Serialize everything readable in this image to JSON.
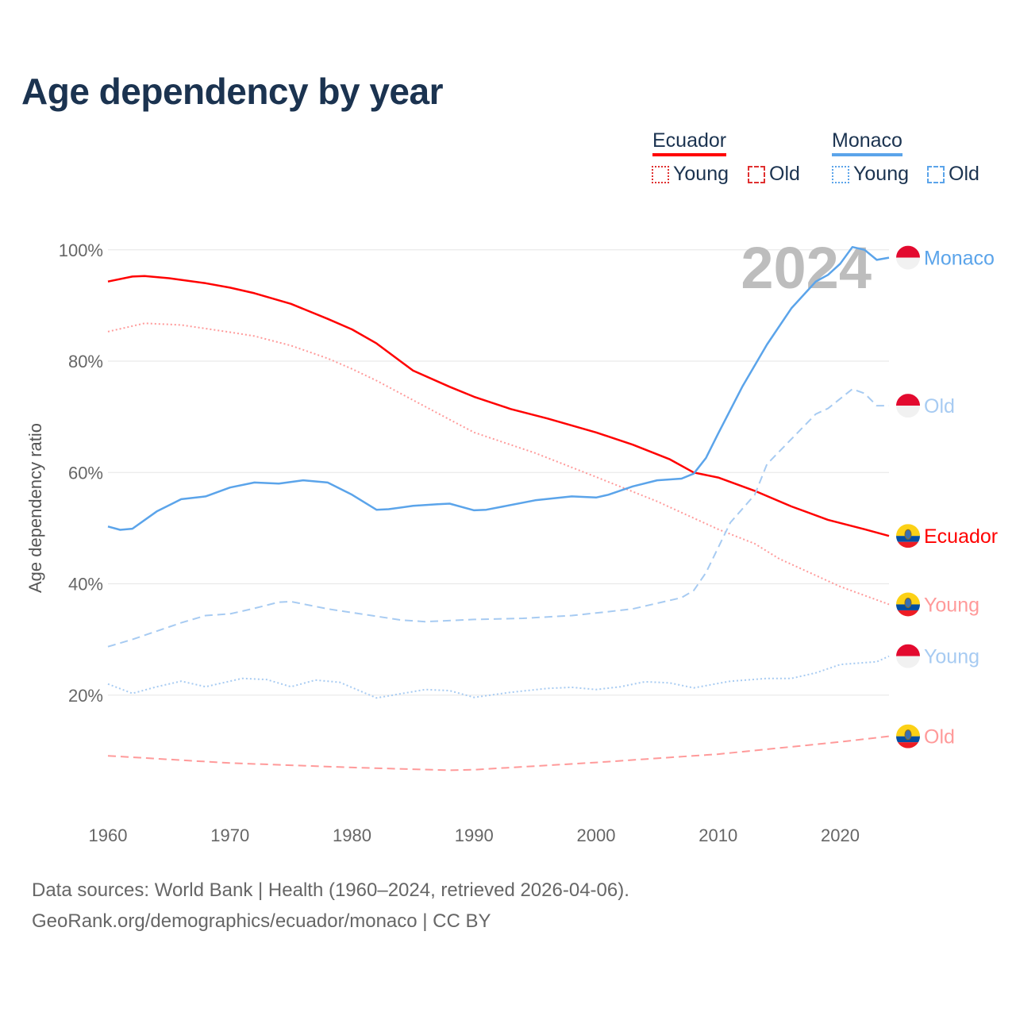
{
  "chart_data": {
    "type": "line",
    "title": "Age dependency by year",
    "ylabel": "Age dependency ratio",
    "xlabel": "",
    "xlim": [
      1960,
      2024
    ],
    "ylim": [
      0,
      100
    ],
    "x_ticks": [
      "1960",
      "1970",
      "1980",
      "1990",
      "2000",
      "2010",
      "2020"
    ],
    "y_ticks": [
      "20%",
      "40%",
      "60%",
      "80%",
      "100%"
    ],
    "year_watermark": "2024",
    "legend": {
      "placement": "top-right",
      "groups": [
        {
          "country": "Ecuador",
          "items": [
            "Young",
            "Old"
          ]
        },
        {
          "country": "Monaco",
          "items": [
            "Young",
            "Old"
          ]
        }
      ]
    },
    "series": [
      {
        "name": "Ecuador",
        "label": "Ecuador",
        "color": "#ff0000",
        "style": "solid",
        "width": 2.5,
        "flag": "ecuador",
        "points": [
          [
            1960,
            94.3
          ],
          [
            1962,
            95.2
          ],
          [
            1963,
            95.3
          ],
          [
            1965,
            94.9
          ],
          [
            1968,
            94
          ],
          [
            1970,
            93.2
          ],
          [
            1972,
            92.2
          ],
          [
            1975,
            90.3
          ],
          [
            1978,
            87.6
          ],
          [
            1980,
            85.7
          ],
          [
            1982,
            83.2
          ],
          [
            1985,
            78.3
          ],
          [
            1988,
            75.4
          ],
          [
            1990,
            73.6
          ],
          [
            1993,
            71.4
          ],
          [
            1996,
            69.7
          ],
          [
            2000,
            67.2
          ],
          [
            2003,
            65
          ],
          [
            2006,
            62.4
          ],
          [
            2008,
            60
          ],
          [
            2010,
            59.1
          ],
          [
            2013,
            56.7
          ],
          [
            2016,
            53.9
          ],
          [
            2019,
            51.5
          ],
          [
            2022,
            49.8
          ],
          [
            2024,
            48.6
          ]
        ]
      },
      {
        "name": "Ecuador Young",
        "label": "Young",
        "color": "#ff9a9a",
        "style": "dotted",
        "width": 2,
        "flag": "ecuador",
        "points": [
          [
            1960,
            85.3
          ],
          [
            1963,
            86.8
          ],
          [
            1966,
            86.5
          ],
          [
            1970,
            85.2
          ],
          [
            1972,
            84.5
          ],
          [
            1975,
            82.8
          ],
          [
            1978,
            80.5
          ],
          [
            1980,
            78.6
          ],
          [
            1982,
            76.5
          ],
          [
            1985,
            73
          ],
          [
            1988,
            69.5
          ],
          [
            1990,
            67.2
          ],
          [
            1995,
            63.5
          ],
          [
            2000,
            59.2
          ],
          [
            2005,
            54.8
          ],
          [
            2010,
            49.8
          ],
          [
            2013,
            47.2
          ],
          [
            2015,
            44.5
          ],
          [
            2020,
            39.5
          ],
          [
            2024,
            36.3
          ]
        ]
      },
      {
        "name": "Ecuador Old",
        "label": "Old",
        "color": "#ff9a9a",
        "style": "dashed",
        "width": 2,
        "flag": "ecuador",
        "points": [
          [
            1960,
            9.1
          ],
          [
            1970,
            7.8
          ],
          [
            1980,
            7.0
          ],
          [
            1988,
            6.5
          ],
          [
            1990,
            6.6
          ],
          [
            2000,
            7.9
          ],
          [
            2010,
            9.4
          ],
          [
            2015,
            10.5
          ],
          [
            2020,
            11.6
          ],
          [
            2024,
            12.6
          ]
        ]
      },
      {
        "name": "Monaco",
        "label": "Monaco",
        "color": "#5ba4ea",
        "style": "solid",
        "width": 2.5,
        "flag": "monaco",
        "points": [
          [
            1960,
            50.3
          ],
          [
            1961,
            49.7
          ],
          [
            1962,
            49.9
          ],
          [
            1964,
            53
          ],
          [
            1966,
            55.2
          ],
          [
            1968,
            55.7
          ],
          [
            1970,
            57.3
          ],
          [
            1972,
            58.2
          ],
          [
            1974,
            58
          ],
          [
            1976,
            58.6
          ],
          [
            1978,
            58.2
          ],
          [
            1980,
            56
          ],
          [
            1982,
            53.3
          ],
          [
            1983,
            53.4
          ],
          [
            1985,
            54
          ],
          [
            1987,
            54.3
          ],
          [
            1988,
            54.4
          ],
          [
            1990,
            53.2
          ],
          [
            1991,
            53.3
          ],
          [
            1995,
            55
          ],
          [
            1998,
            55.7
          ],
          [
            2000,
            55.5
          ],
          [
            2001,
            56
          ],
          [
            2003,
            57.5
          ],
          [
            2005,
            58.6
          ],
          [
            2007,
            58.9
          ],
          [
            2008,
            59.8
          ],
          [
            2009,
            62.6
          ],
          [
            2010,
            67
          ],
          [
            2012,
            75.5
          ],
          [
            2014,
            83
          ],
          [
            2016,
            89.5
          ],
          [
            2018,
            94.3
          ],
          [
            2019,
            95.5
          ],
          [
            2020,
            97.5
          ],
          [
            2021,
            100.5
          ],
          [
            2022,
            100
          ],
          [
            2023,
            98.2
          ],
          [
            2024,
            98.6
          ]
        ]
      },
      {
        "name": "Monaco Old",
        "label": "Old",
        "color": "#a7cbf2",
        "style": "dashed",
        "width": 2,
        "flag": "monaco",
        "points": [
          [
            1960,
            28.7
          ],
          [
            1962,
            30
          ],
          [
            1966,
            33
          ],
          [
            1968,
            34.3
          ],
          [
            1970,
            34.6
          ],
          [
            1972,
            35.6
          ],
          [
            1974,
            36.7
          ],
          [
            1975,
            36.8
          ],
          [
            1978,
            35.5
          ],
          [
            1981,
            34.5
          ],
          [
            1984,
            33.5
          ],
          [
            1986,
            33.2
          ],
          [
            1990,
            33.6
          ],
          [
            1994,
            33.8
          ],
          [
            1998,
            34.3
          ],
          [
            2001,
            35
          ],
          [
            2003,
            35.5
          ],
          [
            2005,
            36.5
          ],
          [
            2007,
            37.5
          ],
          [
            2008,
            38.8
          ],
          [
            2009,
            42
          ],
          [
            2010,
            46.5
          ],
          [
            2011,
            51
          ],
          [
            2013,
            56
          ],
          [
            2014,
            61.5
          ],
          [
            2016,
            66
          ],
          [
            2018,
            70.5
          ],
          [
            2019,
            71.5
          ],
          [
            2021,
            75
          ],
          [
            2022,
            74.2
          ],
          [
            2023,
            72
          ],
          [
            2024,
            72
          ]
        ]
      },
      {
        "name": "Monaco Young",
        "label": "Young",
        "color": "#a7cbf2",
        "style": "dotted",
        "width": 2,
        "flag": "monaco",
        "points": [
          [
            1960,
            22
          ],
          [
            1962,
            20.3
          ],
          [
            1964,
            21.5
          ],
          [
            1966,
            22.5
          ],
          [
            1968,
            21.5
          ],
          [
            1971,
            23
          ],
          [
            1973,
            22.8
          ],
          [
            1975,
            21.5
          ],
          [
            1977,
            22.7
          ],
          [
            1979,
            22.3
          ],
          [
            1982,
            19.5
          ],
          [
            1986,
            21
          ],
          [
            1988,
            20.8
          ],
          [
            1990,
            19.6
          ],
          [
            1993,
            20.5
          ],
          [
            1996,
            21.2
          ],
          [
            1998,
            21.4
          ],
          [
            2000,
            21
          ],
          [
            2002,
            21.5
          ],
          [
            2004,
            22.4
          ],
          [
            2006,
            22.2
          ],
          [
            2008,
            21.3
          ],
          [
            2011,
            22.5
          ],
          [
            2014,
            23
          ],
          [
            2016,
            23
          ],
          [
            2018,
            24
          ],
          [
            2020,
            25.5
          ],
          [
            2023,
            26
          ],
          [
            2024,
            27
          ]
        ]
      }
    ]
  },
  "footer": {
    "line1": "Data sources: World Bank | Health (1960–2024, retrieved 2026-04-06).",
    "line2": "GeoRank.org/demographics/ecuador/monaco | CC BY"
  }
}
